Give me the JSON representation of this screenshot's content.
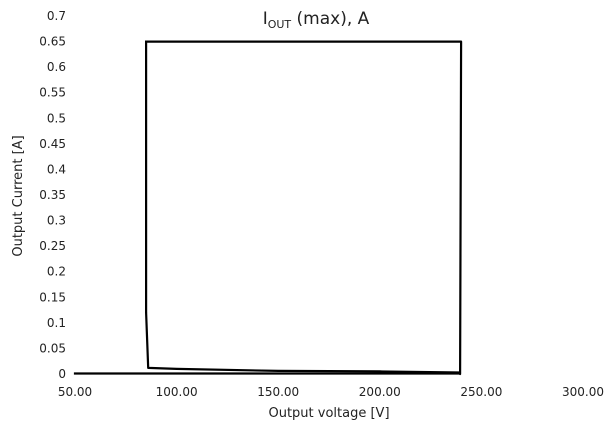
{
  "chart_data": {
    "type": "line",
    "title": {
      "prefix": "I",
      "subscript": "OUT",
      "suffix": " (max), A"
    },
    "xlabel": "Output voltage [V]",
    "ylabel": "Output Current [A]",
    "xlim": [
      50,
      300
    ],
    "ylim": [
      0,
      0.7
    ],
    "x_ticks": [
      50,
      100,
      150,
      200,
      250,
      300
    ],
    "x_tick_labels": [
      "50.00",
      "100.00",
      "150.00",
      "200.00",
      "250.00",
      "300.00"
    ],
    "y_ticks": [
      0,
      0.05,
      0.1,
      0.15,
      0.2,
      0.25,
      0.3,
      0.35,
      0.4,
      0.45,
      0.5,
      0.55,
      0.6,
      0.65,
      0.7
    ],
    "y_tick_labels": [
      "0",
      "0.05",
      "0.1",
      "0.15",
      "0.2",
      "0.25",
      "0.3",
      "0.35",
      "0.4",
      "0.45",
      "0.5",
      "0.55",
      "0.6",
      "0.65",
      "0.7"
    ],
    "grid": false,
    "legend": "none",
    "series": [
      {
        "color": "#000000",
        "x": [
          85,
          85,
          86,
          100,
          150,
          200,
          239,
          239.5,
          240,
          240,
          85
        ],
        "y": [
          0.65,
          0.12,
          0.012,
          0.01,
          0.006,
          0.005,
          0.003,
          0,
          0.65,
          0.65,
          0.65
        ]
      },
      {
        "color": "#000000",
        "x": [
          50,
          239
        ],
        "y": [
          0.001,
          0.001
        ]
      }
    ]
  }
}
